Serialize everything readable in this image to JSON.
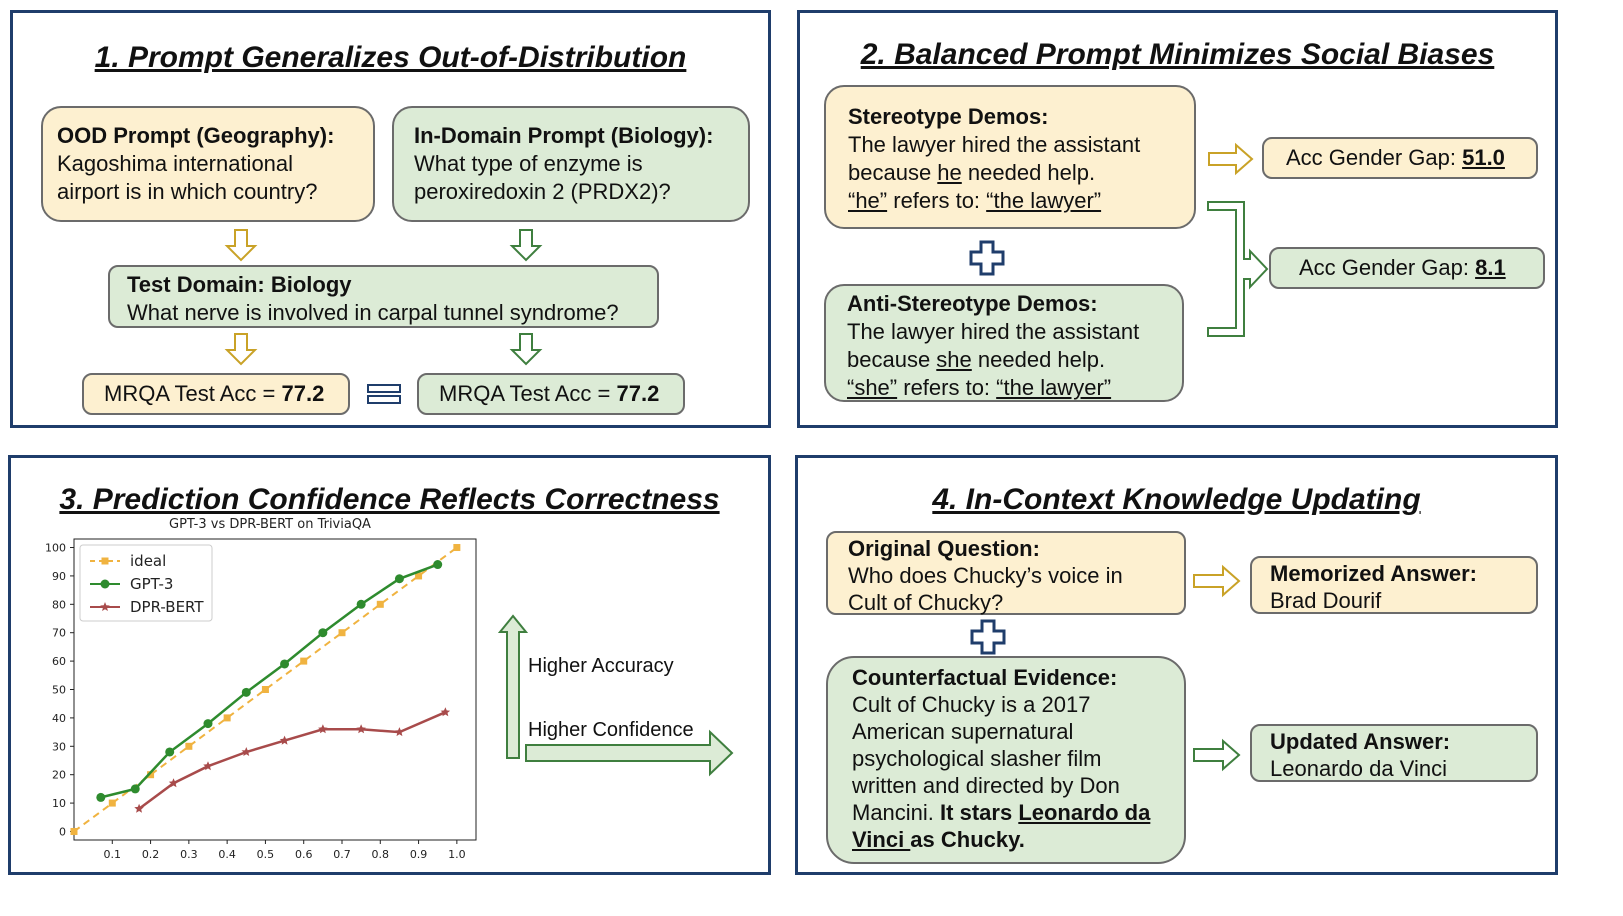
{
  "panel1": {
    "title": "1. Prompt Generalizes Out-of-Distribution",
    "ood_heading": "OOD Prompt (Geography):",
    "ood_text_1": "Kagoshima international",
    "ood_text_2": "airport is in which country?",
    "indomain_heading": "In-Domain Prompt (Biology):",
    "indomain_text_1": "What type of enzyme is",
    "indomain_text_2": "peroxiredoxin 2 (PRDX2)?",
    "test_heading": "Test Domain: Biology",
    "test_text": "What nerve is involved in carpal tunnel syndrome?",
    "acc_label_left": "MRQA Test Acc = ",
    "acc_value_left": "77.2",
    "acc_label_right": "MRQA Test Acc = ",
    "acc_value_right": "77.2"
  },
  "panel2": {
    "title": "2. Balanced Prompt Minimizes Social Biases",
    "stereo_heading": "Stereotype Demos:",
    "stereo_line1": "The lawyer hired the assistant",
    "stereo_line2_a": "because ",
    "stereo_line2_b": "he",
    "stereo_line2_c": " needed help.",
    "stereo_line3_a": "“he”",
    "stereo_line3_b": " refers to:  ",
    "stereo_line3_c": "“the lawyer”",
    "anti_heading": "Anti-Stereotype Demos:",
    "anti_line1": "The lawyer hired the assistant",
    "anti_line2_a": "because ",
    "anti_line2_b": "she",
    "anti_line2_c": " needed help.",
    "anti_line3_a": "“she”",
    "anti_line3_b": " refers to:  ",
    "anti_line3_c": "“the lawyer”",
    "gap1_label": "Acc Gender Gap:  ",
    "gap1_value": "51.0",
    "gap2_label": "Acc Gender Gap:  ",
    "gap2_value": "8.1"
  },
  "panel3": {
    "title": "3. Prediction Confidence Reflects Correctness",
    "higher_accuracy": "Higher Accuracy",
    "higher_confidence": "Higher Confidence"
  },
  "panel4": {
    "title": "4. In-Context Knowledge Updating",
    "orig_heading": "Original Question:",
    "orig_line1": "Who does Chucky’s voice in",
    "orig_line2": "Cult of Chucky?",
    "mem_heading": "Memorized Answer:",
    "mem_value": "Brad Dourif",
    "cf_heading": "Counterfactual Evidence:",
    "cf_line1": "Cult of Chucky is a 2017",
    "cf_line2": "American supernatural",
    "cf_line3": "psychological slasher film",
    "cf_line4": "written and directed by Don",
    "cf_line5_a": "Mancini. ",
    "cf_line5_b": "It stars ",
    "cf_line5_c": "Leonardo da",
    "cf_line6_a": "Vinci ",
    "cf_line6_b": "as Chucky.",
    "upd_heading": "Updated Answer:",
    "upd_value": "Leonardo da Vinci"
  },
  "colors": {
    "panel_border": "#1f3d6b",
    "yellow_fill": "#fdf0d0",
    "green_fill": "#dcebd6",
    "yellow_arrow": "#c9a227",
    "green_arrow": "#3f7f3f",
    "plus_blue": "#1f3d6b"
  },
  "chart_data": {
    "type": "line",
    "title": "GPT-3 vs DPR-BERT on TriviaQA",
    "xlabel": "",
    "ylabel": "",
    "xlim": [
      0,
      1.05
    ],
    "ylim": [
      -3,
      103
    ],
    "xticks": [
      "0.1",
      "0.2",
      "0.3",
      "0.4",
      "0.5",
      "0.6",
      "0.7",
      "0.8",
      "0.9",
      "1.0"
    ],
    "yticks": [
      "0",
      "10",
      "20",
      "30",
      "40",
      "50",
      "60",
      "70",
      "80",
      "90",
      "100"
    ],
    "legend": "top-left",
    "grid": false,
    "series": [
      {
        "name": "ideal",
        "color": "#f0b340",
        "style": "dashed",
        "marker": "square",
        "x": [
          0.0,
          0.1,
          0.2,
          0.3,
          0.4,
          0.5,
          0.6,
          0.7,
          0.8,
          0.9,
          1.0
        ],
        "y": [
          0,
          10,
          20,
          30,
          40,
          50,
          60,
          70,
          80,
          90,
          100
        ]
      },
      {
        "name": "GPT-3",
        "color": "#2e8b2e",
        "style": "solid",
        "marker": "circle",
        "x": [
          0.07,
          0.16,
          0.25,
          0.35,
          0.45,
          0.55,
          0.65,
          0.75,
          0.85,
          0.95
        ],
        "y": [
          12,
          15,
          28,
          38,
          49,
          59,
          70,
          80,
          89,
          94
        ]
      },
      {
        "name": "DPR-BERT",
        "color": "#a84b4b",
        "style": "solid",
        "marker": "star",
        "x": [
          0.17,
          0.26,
          0.35,
          0.45,
          0.55,
          0.65,
          0.75,
          0.85,
          0.97
        ],
        "y": [
          8,
          17,
          23,
          28,
          32,
          36,
          36,
          35,
          42
        ]
      }
    ]
  }
}
